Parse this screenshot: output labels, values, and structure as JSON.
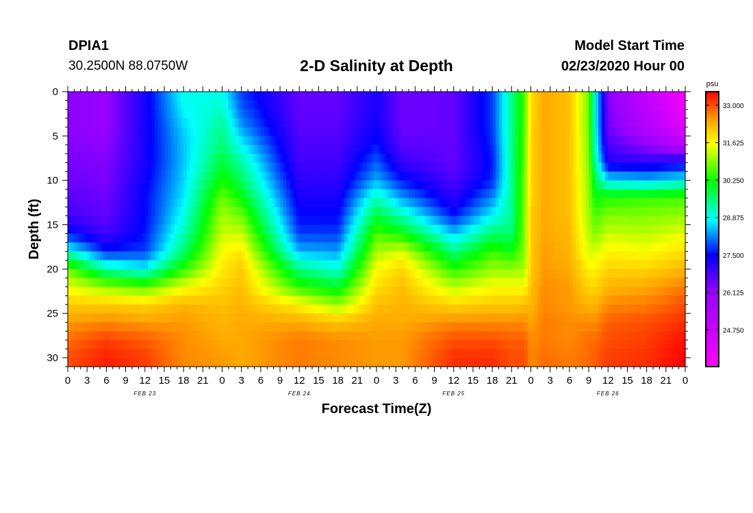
{
  "header": {
    "station_id": "DPIA1",
    "station_coords": "30.2500N 88.0750W",
    "title": "2-D Salinity at Depth",
    "model_start_label": "Model Start Time",
    "model_start_value": "02/23/2020 Hour 00"
  },
  "chart_data": {
    "type": "heatmap",
    "title": "2-D Salinity at Depth",
    "xlabel": "Forecast Time(Z)",
    "ylabel": "Depth (ft)",
    "x_hours": [
      0,
      96
    ],
    "x_tick_labels": [
      "0",
      "3",
      "6",
      "9",
      "12",
      "15",
      "18",
      "21",
      "0",
      "3",
      "6",
      "9",
      "12",
      "15",
      "18",
      "21",
      "0",
      "3",
      "6",
      "9",
      "12",
      "15",
      "18",
      "21",
      "0",
      "3",
      "6",
      "9",
      "12",
      "15",
      "18",
      "21",
      "0"
    ],
    "date_labels": [
      {
        "label": "FEB 23",
        "hour": 12
      },
      {
        "label": "FEB 24",
        "hour": 36
      },
      {
        "label": "FEB 25",
        "hour": 60
      },
      {
        "label": "FEB 26",
        "hour": 84
      }
    ],
    "ylim": [
      0,
      31
    ],
    "y_ticks": [
      0,
      5,
      10,
      15,
      20,
      25,
      30
    ],
    "colorbar": {
      "unit": "psu",
      "min": 23.4,
      "max": 33.5,
      "ticks": [
        "33.000",
        "31.625",
        "30.250",
        "28.875",
        "27.500",
        "26.125",
        "24.750"
      ],
      "stops": [
        {
          "v": 23.4,
          "c": "#ff00ff"
        },
        {
          "v": 26.1,
          "c": "#9900ff"
        },
        {
          "v": 27.5,
          "c": "#0000ff"
        },
        {
          "v": 28.8,
          "c": "#00ffff"
        },
        {
          "v": 30.2,
          "c": "#00ff00"
        },
        {
          "v": 31.6,
          "c": "#ffff00"
        },
        {
          "v": 32.4,
          "c": "#ffaa00"
        },
        {
          "v": 33.5,
          "c": "#ff0000"
        }
      ]
    },
    "depth_levels": [
      0,
      2,
      4,
      6,
      8,
      10,
      12,
      14,
      16,
      18,
      20,
      22,
      24,
      26,
      28,
      30
    ],
    "profiles": [
      {
        "hour": 0,
        "salinity": [
          26.2,
          26.2,
          26.2,
          26.3,
          26.4,
          26.5,
          26.7,
          26.9,
          27.6,
          29.0,
          30.8,
          31.5,
          32.1,
          32.5,
          32.8,
          33.0
        ]
      },
      {
        "hour": 6,
        "salinity": [
          26.1,
          26.1,
          26.1,
          26.2,
          26.3,
          26.4,
          26.5,
          26.6,
          26.9,
          27.6,
          29.3,
          31.0,
          32.1,
          32.6,
          33.1,
          33.3
        ]
      },
      {
        "hour": 12,
        "salinity": [
          27.3,
          27.3,
          27.3,
          27.3,
          27.3,
          27.4,
          27.5,
          27.5,
          27.6,
          27.8,
          28.8,
          30.7,
          32.0,
          32.5,
          32.9,
          33.1
        ]
      },
      {
        "hour": 18,
        "salinity": [
          28.9,
          28.8,
          28.6,
          28.5,
          28.5,
          28.6,
          28.7,
          28.9,
          29.2,
          29.6,
          30.4,
          31.5,
          32.3,
          32.5,
          32.6,
          32.6
        ]
      },
      {
        "hour": 24,
        "salinity": [
          28.9,
          29.1,
          29.4,
          29.6,
          29.9,
          30.3,
          30.8,
          31.1,
          31.3,
          31.6,
          31.8,
          32.0,
          32.2,
          32.3,
          32.4,
          32.5
        ]
      },
      {
        "hour": 27,
        "salinity": [
          27.8,
          28.0,
          28.3,
          28.8,
          29.3,
          29.7,
          30.2,
          30.8,
          31.3,
          31.8,
          32.1,
          32.2,
          32.3,
          32.4,
          32.4,
          32.4
        ]
      },
      {
        "hour": 36,
        "salinity": [
          26.6,
          26.6,
          26.7,
          26.8,
          26.9,
          27.1,
          27.3,
          27.5,
          27.8,
          28.4,
          29.5,
          30.4,
          31.7,
          32.4,
          32.7,
          32.7
        ]
      },
      {
        "hour": 42,
        "salinity": [
          26.6,
          26.6,
          26.7,
          26.8,
          26.9,
          27.1,
          27.3,
          27.5,
          27.8,
          28.3,
          29.0,
          30.0,
          31.0,
          32.2,
          32.6,
          32.6
        ]
      },
      {
        "hour": 48,
        "salinity": [
          27.3,
          27.3,
          27.4,
          27.6,
          28.0,
          28.4,
          29.2,
          29.9,
          30.6,
          31.1,
          31.6,
          31.9,
          32.2,
          32.4,
          32.5,
          32.5
        ]
      },
      {
        "hour": 52,
        "salinity": [
          26.5,
          26.5,
          26.5,
          26.7,
          27.0,
          27.6,
          28.3,
          29.2,
          30.2,
          31.4,
          32.0,
          32.2,
          32.3,
          32.4,
          32.5,
          32.5
        ]
      },
      {
        "hour": 60,
        "salinity": [
          26.6,
          26.6,
          26.6,
          26.6,
          26.6,
          26.8,
          27.1,
          27.6,
          28.5,
          29.5,
          30.4,
          31.2,
          32.0,
          32.6,
          33.0,
          33.2
        ]
      },
      {
        "hour": 66,
        "salinity": [
          27.8,
          27.8,
          27.8,
          27.7,
          27.6,
          27.7,
          28.2,
          28.8,
          29.6,
          30.5,
          31.0,
          31.6,
          32.1,
          32.6,
          33.0,
          33.2
        ]
      },
      {
        "hour": 69,
        "salinity": [
          29.4,
          29.4,
          29.4,
          29.4,
          29.4,
          29.4,
          29.4,
          29.4,
          29.6,
          30.2,
          31.0,
          31.6,
          32.1,
          32.6,
          32.9,
          33.0
        ]
      },
      {
        "hour": 71,
        "salinity": [
          30.6,
          30.6,
          30.6,
          30.7,
          30.7,
          30.8,
          30.8,
          30.9,
          30.9,
          30.9,
          31.1,
          31.6,
          32.2,
          32.6,
          32.9,
          33.0
        ]
      },
      {
        "hour": 72,
        "salinity": [
          31.9,
          31.9,
          32.0,
          32.0,
          32.0,
          32.0,
          32.0,
          32.1,
          32.1,
          32.1,
          32.1,
          32.2,
          32.3,
          32.4,
          32.6,
          32.6
        ]
      },
      {
        "hour": 74,
        "salinity": [
          32.4,
          32.4,
          32.4,
          32.4,
          32.4,
          32.4,
          32.4,
          32.4,
          32.4,
          32.5,
          32.5,
          32.6,
          32.6,
          32.7,
          32.7,
          32.8
        ]
      },
      {
        "hour": 78,
        "salinity": [
          32.2,
          32.2,
          32.2,
          32.2,
          32.2,
          32.2,
          32.2,
          32.2,
          32.3,
          32.3,
          32.4,
          32.5,
          32.5,
          32.6,
          32.6,
          32.7
        ]
      },
      {
        "hour": 81,
        "salinity": [
          30.8,
          30.8,
          30.8,
          30.9,
          30.9,
          31.0,
          31.0,
          31.1,
          31.2,
          31.4,
          31.7,
          32.0,
          32.3,
          32.6,
          32.8,
          32.8
        ]
      },
      {
        "hour": 82,
        "salinity": [
          28.9,
          28.9,
          28.9,
          29.0,
          29.3,
          29.8,
          30.2,
          30.6,
          30.9,
          31.4,
          31.7,
          32.0,
          32.3,
          32.6,
          32.8,
          32.9
        ]
      },
      {
        "hour": 84,
        "salinity": [
          26.3,
          26.4,
          26.5,
          26.8,
          27.2,
          28.7,
          30.4,
          30.9,
          31.3,
          31.7,
          32.0,
          32.3,
          32.6,
          32.9,
          33.0,
          33.1
        ]
      },
      {
        "hour": 90,
        "salinity": [
          25.0,
          25.2,
          25.4,
          26.2,
          27.1,
          28.5,
          30.5,
          30.9,
          31.2,
          31.6,
          32.0,
          32.4,
          32.7,
          33.0,
          33.1,
          33.2
        ]
      },
      {
        "hour": 96,
        "salinity": [
          23.6,
          23.8,
          24.2,
          25.3,
          27.4,
          28.8,
          30.6,
          31.0,
          31.5,
          31.9,
          32.3,
          32.7,
          33.0,
          33.2,
          33.4,
          33.5
        ]
      }
    ]
  }
}
